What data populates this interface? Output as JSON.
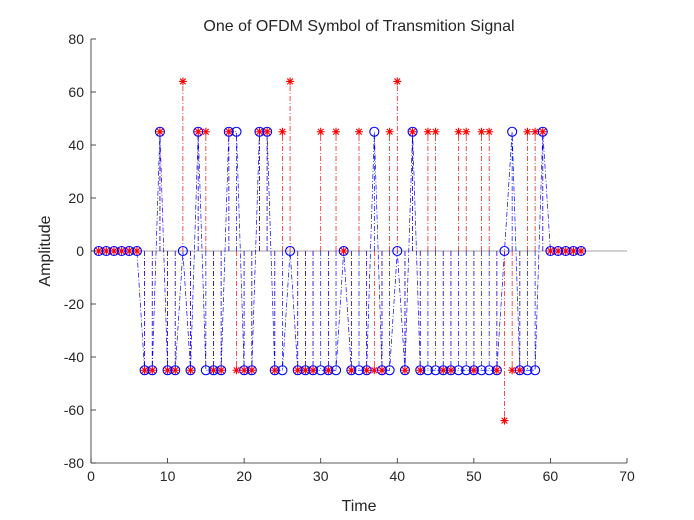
{
  "chart_data": {
    "type": "scatter",
    "title": "One of OFDM Symbol of Transmition Signal",
    "xlabel": "Time",
    "ylabel": "Amplitude",
    "xlim": [
      0,
      70
    ],
    "ylim": [
      -80,
      80
    ],
    "xticks": [
      0,
      10,
      20,
      30,
      40,
      50,
      60,
      70
    ],
    "yticks": [
      -80,
      -60,
      -40,
      -20,
      0,
      20,
      40,
      60,
      80
    ],
    "grid": false,
    "legend": "none",
    "baseline": 0,
    "series": [
      {
        "style": "stem, red dash-dot lines with asterisk markers",
        "color": "#ff0000",
        "marker": "asterisk",
        "x": [
          1,
          2,
          3,
          4,
          5,
          6,
          7,
          8,
          9,
          10,
          11,
          12,
          13,
          14,
          15,
          16,
          17,
          18,
          19,
          20,
          21,
          22,
          23,
          24,
          25,
          26,
          27,
          28,
          29,
          30,
          31,
          32,
          33,
          34,
          35,
          36,
          37,
          38,
          39,
          40,
          41,
          42,
          43,
          44,
          45,
          46,
          47,
          48,
          49,
          50,
          51,
          52,
          53,
          54,
          55,
          56,
          57,
          58,
          59,
          60,
          61,
          62,
          63,
          64
        ],
        "values": [
          0,
          0,
          0,
          0,
          0,
          0,
          -45,
          -45,
          45,
          -45,
          -45,
          64,
          -45,
          45,
          45,
          -45,
          -45,
          45,
          -45,
          -45,
          -45,
          45,
          45,
          -45,
          45,
          64,
          -45,
          -45,
          -45,
          45,
          -45,
          45,
          0,
          -45,
          45,
          -45,
          -45,
          -45,
          45,
          64,
          -45,
          45,
          -45,
          45,
          45,
          -45,
          -45,
          45,
          45,
          -45,
          45,
          45,
          -45,
          -64,
          -45,
          -45,
          45,
          45,
          45,
          0,
          0,
          0,
          0,
          0
        ]
      },
      {
        "style": "stem, blue dash-dot lines with circle markers",
        "color": "#0000ff",
        "marker": "circle",
        "x": [
          1,
          2,
          3,
          4,
          5,
          6,
          7,
          8,
          9,
          10,
          11,
          12,
          13,
          14,
          15,
          16,
          17,
          18,
          19,
          20,
          21,
          22,
          23,
          24,
          25,
          26,
          27,
          28,
          29,
          30,
          31,
          32,
          33,
          34,
          35,
          36,
          37,
          38,
          39,
          40,
          41,
          42,
          43,
          44,
          45,
          46,
          47,
          48,
          49,
          50,
          51,
          52,
          53,
          54,
          55,
          56,
          57,
          58,
          59,
          60,
          61,
          62,
          63,
          64
        ],
        "values": [
          0,
          0,
          0,
          0,
          0,
          0,
          -45,
          -45,
          45,
          -45,
          -45,
          0,
          -45,
          45,
          -45,
          -45,
          -45,
          45,
          45,
          -45,
          -45,
          45,
          45,
          -45,
          -45,
          0,
          -45,
          -45,
          -45,
          -45,
          -45,
          -45,
          0,
          -45,
          -45,
          -45,
          45,
          -45,
          -45,
          0,
          -45,
          45,
          -45,
          -45,
          -45,
          -45,
          -45,
          -45,
          -45,
          -45,
          -45,
          -45,
          -45,
          0,
          45,
          -45,
          -45,
          -45,
          45,
          0,
          0,
          0,
          0,
          0
        ]
      }
    ]
  }
}
